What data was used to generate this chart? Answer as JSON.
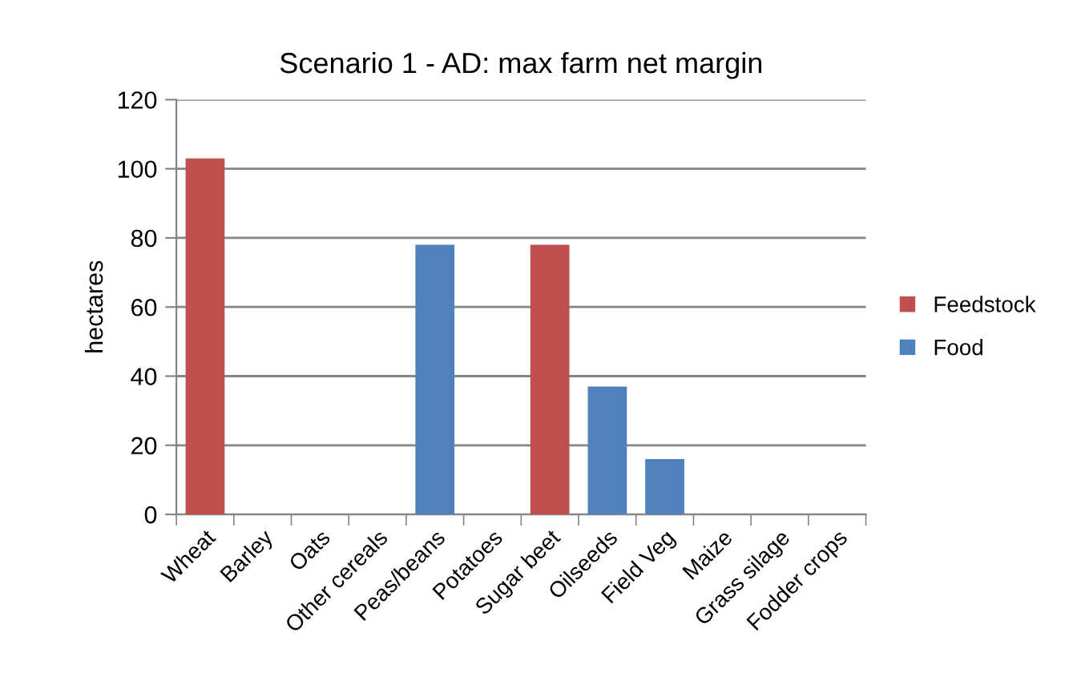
{
  "chart_data": {
    "type": "bar",
    "title": "Scenario 1 - AD: max farm net margin",
    "ylabel": "hectares",
    "categories": [
      "Wheat",
      "Barley",
      "Oats",
      "Other cereals",
      "Peas/beans",
      "Potatoes",
      "Sugar beet",
      "Oilseeds",
      "Field Veg",
      "Maize",
      "Grass silage",
      "Fodder crops"
    ],
    "series": [
      {
        "name": "Feedstock",
        "color": "#c0504d",
        "values": [
          103,
          null,
          null,
          null,
          null,
          null,
          78,
          null,
          null,
          null,
          null,
          null
        ]
      },
      {
        "name": "Food",
        "color": "#4f81bd",
        "values": [
          null,
          null,
          null,
          null,
          78,
          null,
          null,
          37,
          16,
          null,
          null,
          null
        ]
      }
    ],
    "stacked": true,
    "ylim": [
      0,
      120
    ],
    "yticks": [
      0,
      20,
      40,
      60,
      80,
      100,
      120
    ],
    "grid": "y",
    "legend": "right"
  }
}
